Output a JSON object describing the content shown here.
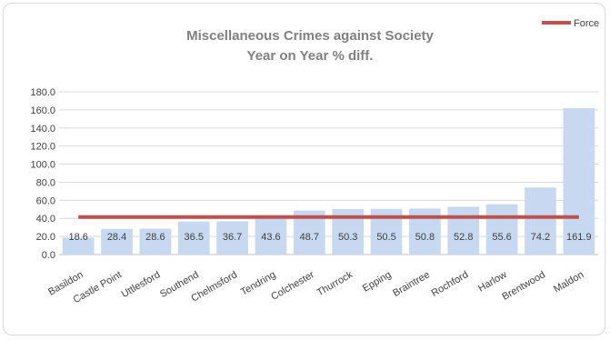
{
  "chart_data": {
    "type": "bar",
    "title_lines": [
      "Miscellaneous Crimes against Society",
      "Year on Year % diff."
    ],
    "categories": [
      "Basildon",
      "Castle Point",
      "Uttlesford",
      "Southend",
      "Chelmsford",
      "Tendring",
      "Colchester",
      "Thurrock",
      "Epping",
      "Braintree",
      "Rochford",
      "Harlow",
      "Brentwood",
      "Maldon"
    ],
    "values": [
      18.6,
      28.4,
      28.6,
      36.5,
      36.7,
      43.6,
      48.7,
      50.3,
      50.5,
      50.8,
      52.8,
      55.6,
      74.2,
      161.9
    ],
    "data_labels": [
      "18.6",
      "28.4",
      "28.6",
      "36.5",
      "36.7",
      "43.6",
      "48.7",
      "50.3",
      "50.5",
      "50.8",
      "52.8",
      "55.6",
      "74.2",
      "161.9"
    ],
    "y_ticks": [
      "0.0",
      "20.0",
      "40.0",
      "60.0",
      "80.0",
      "100.0",
      "120.0",
      "140.0",
      "160.0",
      "180.0"
    ],
    "ylim": [
      0,
      180
    ],
    "reference_line": {
      "name": "Force",
      "value": 41.5
    },
    "legend_position": "top-right",
    "grid": true,
    "colors": {
      "bar": "#c6d9f1",
      "line": "#c0504d",
      "grid": "#d9d9d9",
      "axis": "#bfbfbf"
    }
  }
}
